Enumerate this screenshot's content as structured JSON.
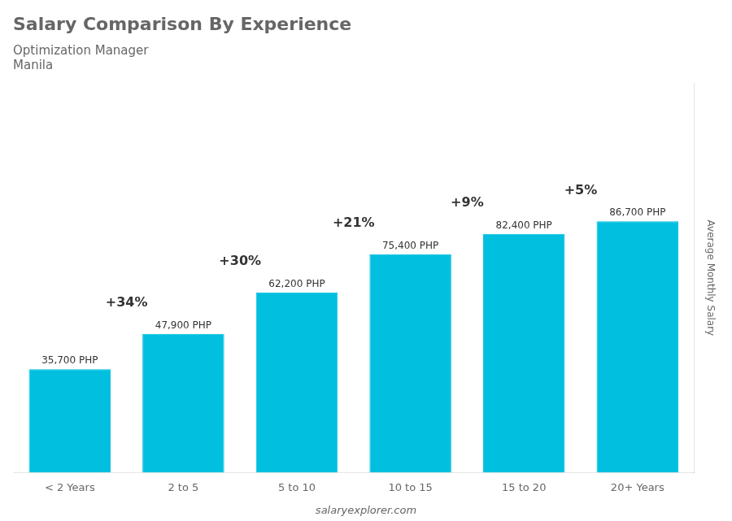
{
  "chart_data": {
    "type": "bar",
    "title": "Salary Comparison By Experience",
    "subtitle": [
      "Optimization Manager",
      "Manila"
    ],
    "ylabel": "Average Monthly Salary",
    "watermark": "salaryexplorer.com",
    "categories": [
      "< 2 Years",
      "2 to 5",
      "5 to 10",
      "10 to 15",
      "15 to 20",
      "20+ Years"
    ],
    "values": [
      35700,
      47900,
      62200,
      75400,
      82400,
      86700
    ],
    "value_labels": [
      "35,700 PHP",
      "47,900 PHP",
      "62,200 PHP",
      "75,400 PHP",
      "82,400 PHP",
      "86,700 PHP"
    ],
    "data_labels": true,
    "annotations": [
      "+34%",
      "+30%",
      "+21%",
      "+9%",
      "+5%"
    ],
    "color": "#00BFDF",
    "ylim": [
      0,
      134385
    ],
    "grid": false,
    "tick_labels": "x"
  }
}
